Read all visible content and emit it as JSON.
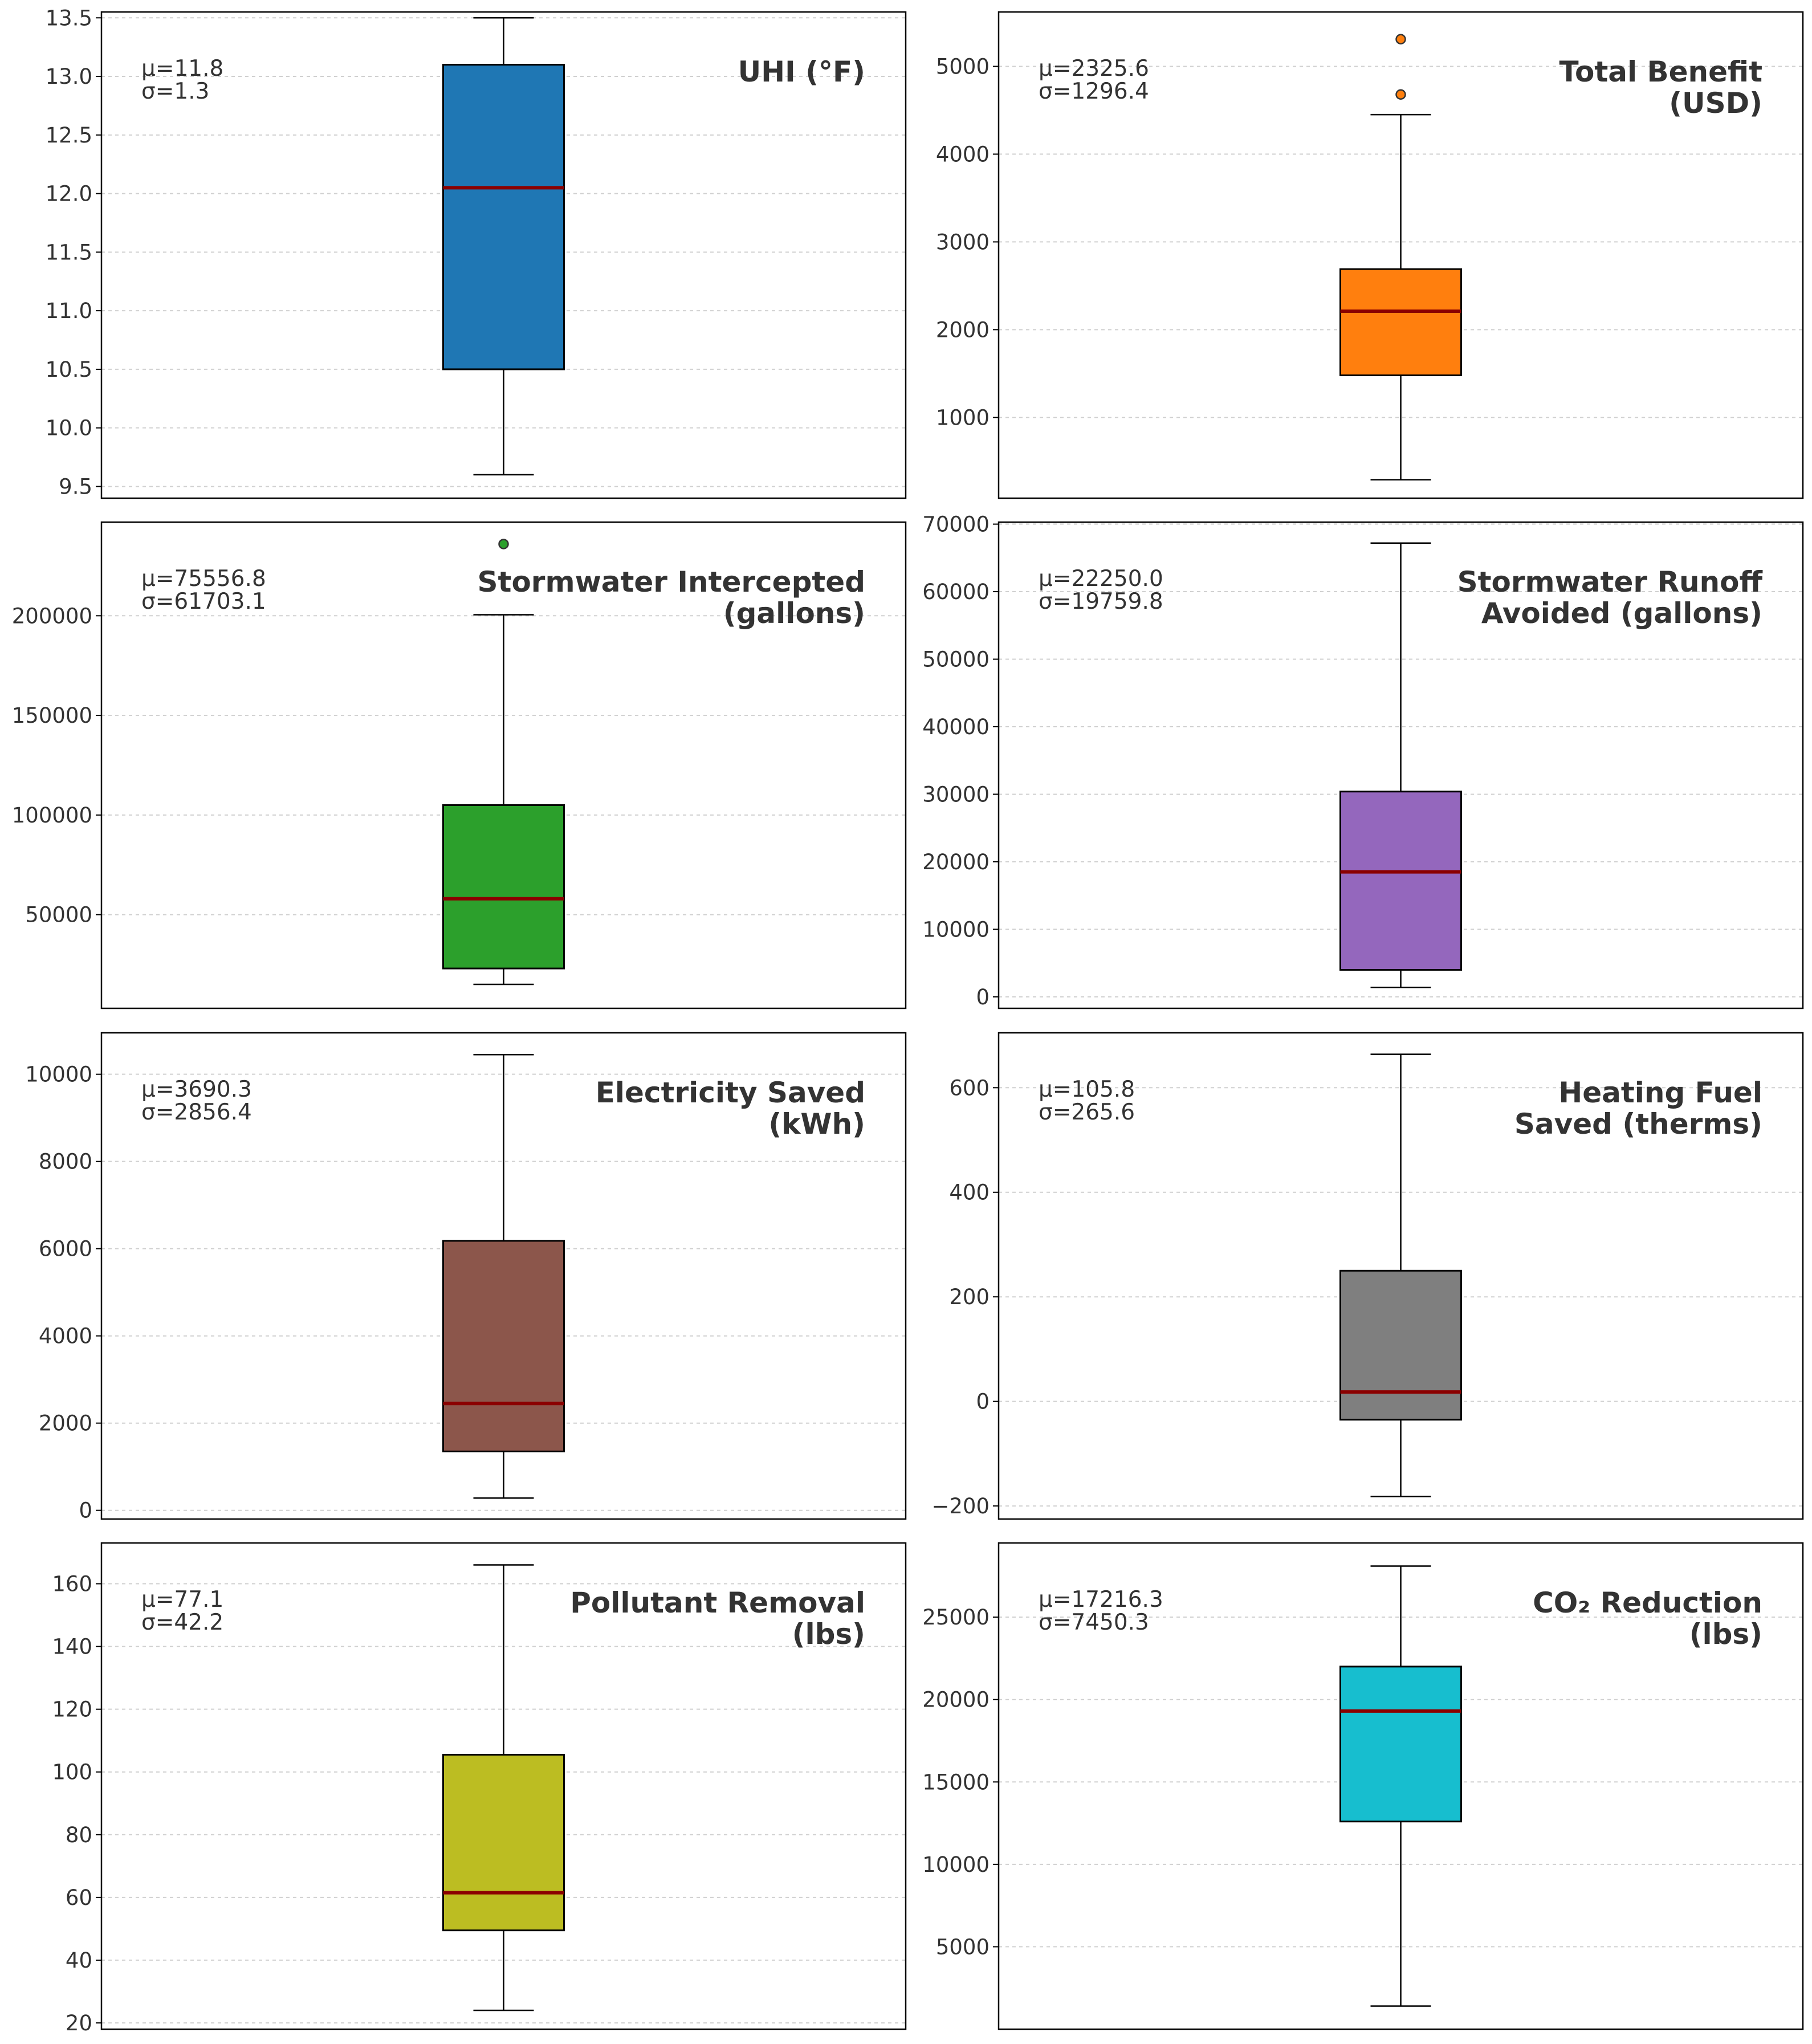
{
  "chart_data": [
    {
      "type": "boxplot",
      "title": [
        "UHI (°F)"
      ],
      "stats_text": [
        "μ=11.8",
        "σ=1.3"
      ],
      "ylim": [
        9.4,
        13.55
      ],
      "yticks": [
        9.5,
        10.0,
        10.5,
        11.0,
        11.5,
        12.0,
        12.5,
        13.0,
        13.5
      ],
      "tick_decimals": 1,
      "box": {
        "whisker_low": 9.6,
        "q1": 10.5,
        "median": 12.05,
        "q3": 13.1,
        "whisker_high": 13.5
      },
      "outliers": [],
      "color": "#1f77b4",
      "grid": true
    },
    {
      "type": "boxplot",
      "title": [
        "Total Benefit",
        "(USD)"
      ],
      "stats_text": [
        "μ=2325.6",
        "σ=1296.4"
      ],
      "ylim": [
        80,
        5620
      ],
      "yticks": [
        1000,
        2000,
        3000,
        4000,
        5000
      ],
      "tick_decimals": 0,
      "box": {
        "whisker_low": 290,
        "q1": 1480,
        "median": 2210,
        "q3": 2690,
        "whisker_high": 4450
      },
      "outliers": [
        4680,
        5310
      ],
      "color": "#ff7f0e",
      "grid": true
    },
    {
      "type": "boxplot",
      "title": [
        "Stormwater Intercepted",
        "(gallons)"
      ],
      "stats_text": [
        "μ=75556.8",
        "σ=61703.1"
      ],
      "ylim": [
        3000,
        247000
      ],
      "yticks": [
        50000,
        100000,
        150000,
        200000
      ],
      "tick_decimals": 0,
      "box": {
        "whisker_low": 15000,
        "q1": 23000,
        "median": 58000,
        "q3": 105000,
        "whisker_high": 200500
      },
      "outliers": [
        236000
      ],
      "color": "#2ca02c",
      "grid": true
    },
    {
      "type": "boxplot",
      "title": [
        "Stormwater Runoff",
        "Avoided (gallons)"
      ],
      "stats_text": [
        "μ=22250.0",
        "σ=19759.8"
      ],
      "ylim": [
        -1700,
        70300
      ],
      "yticks": [
        0,
        10000,
        20000,
        30000,
        40000,
        50000,
        60000,
        70000
      ],
      "tick_decimals": 0,
      "box": {
        "whisker_low": 1400,
        "q1": 4000,
        "median": 18500,
        "q3": 30400,
        "whisker_high": 67200
      },
      "outliers": [],
      "color": "#9467bd",
      "grid": true
    },
    {
      "type": "boxplot",
      "title": [
        "Electricity Saved",
        "(kWh)"
      ],
      "stats_text": [
        "μ=3690.3",
        "σ=2856.4"
      ],
      "ylim": [
        -200,
        10950
      ],
      "yticks": [
        0,
        2000,
        4000,
        6000,
        8000,
        10000
      ],
      "tick_decimals": 0,
      "box": {
        "whisker_low": 280,
        "q1": 1350,
        "median": 2450,
        "q3": 6180,
        "whisker_high": 10450
      },
      "outliers": [],
      "color": "#8c564b",
      "grid": true
    },
    {
      "type": "boxplot",
      "title": [
        "Heating Fuel",
        "Saved (therms)"
      ],
      "stats_text": [
        "μ=105.8",
        "σ=265.6"
      ],
      "ylim": [
        -225,
        705
      ],
      "yticks": [
        -200,
        0,
        200,
        400,
        600
      ],
      "tick_decimals": 0,
      "box": {
        "whisker_low": -182,
        "q1": -35,
        "median": 18,
        "q3": 250,
        "whisker_high": 664
      },
      "outliers": [],
      "color": "#7f7f7f",
      "grid": true
    },
    {
      "type": "boxplot",
      "title": [
        "Pollutant Removal",
        "(lbs)"
      ],
      "stats_text": [
        "μ=77.1",
        "σ=42.2"
      ],
      "ylim": [
        18,
        173
      ],
      "yticks": [
        20,
        40,
        60,
        80,
        100,
        120,
        140,
        160
      ],
      "tick_decimals": 0,
      "box": {
        "whisker_low": 24,
        "q1": 49.5,
        "median": 61.5,
        "q3": 105.5,
        "whisker_high": 166
      },
      "outliers": [],
      "color": "#bcbd22",
      "grid": true
    },
    {
      "type": "boxplot",
      "title": [
        "CO₂ Reduction",
        "(lbs)"
      ],
      "stats_text": [
        "μ=17216.3",
        "σ=7450.3"
      ],
      "ylim": [
        0,
        29500
      ],
      "yticks": [
        5000,
        10000,
        15000,
        20000,
        25000
      ],
      "tick_decimals": 0,
      "box": {
        "whisker_low": 1400,
        "q1": 12600,
        "median": 19300,
        "q3": 22000,
        "whisker_high": 28100
      },
      "outliers": [],
      "color": "#17becf",
      "grid": true
    }
  ],
  "style": {
    "median_color": "#8b0000",
    "edge_color": "#000000",
    "grid_color": "#d0d0d0",
    "text_color": "#333333"
  }
}
